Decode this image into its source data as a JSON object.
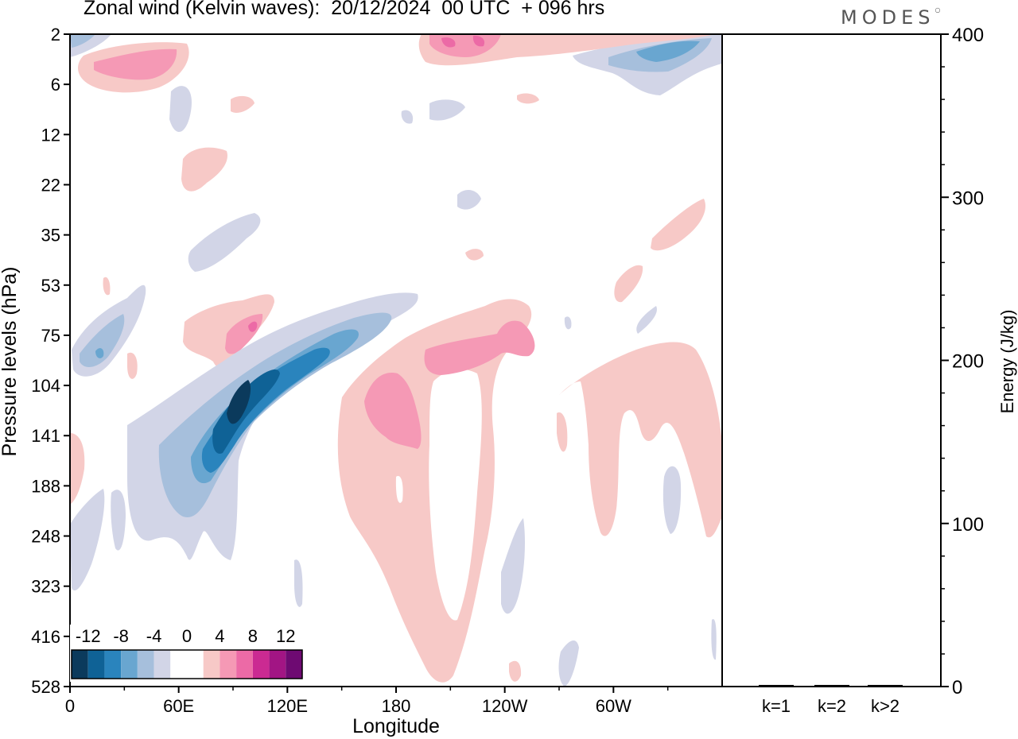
{
  "title": "Zonal wind (Kelvin waves):  20/12/2024  00 UTC  + 096 hrs",
  "brand": "MODES",
  "chart_data": [
    {
      "type": "heatmap",
      "xlabel": "Longitude",
      "ylabel": "Pressure levels (hPa)",
      "xticks": [
        "0",
        "60E",
        "120E",
        "180",
        "120W",
        "60W"
      ],
      "xtick_values": [
        0,
        60,
        120,
        180,
        240,
        300
      ],
      "xlim": [
        0,
        360
      ],
      "yticks": [
        "2",
        "6",
        "12",
        "22",
        "35",
        "53",
        "75",
        "104",
        "141",
        "188",
        "248",
        "323",
        "416",
        "528"
      ],
      "colorbar": {
        "labels": [
          "-12",
          "-8",
          "-4",
          "0",
          "4",
          "8",
          "12"
        ],
        "colors": [
          "#0b3a5c",
          "#0f6296",
          "#2a84bd",
          "#69a6d0",
          "#a6bfdc",
          "#d2d5e7",
          "#ffffff",
          "#ffffff",
          "#f7c9c7",
          "#f599b5",
          "#ec6aa6",
          "#cb2a92",
          "#a21584",
          "#6e0a72"
        ]
      },
      "features": [
        {
          "level": -14,
          "lon": 93,
          "p": 120,
          "note": "strongest easterly core"
        },
        {
          "level": -4,
          "lon": 95,
          "p": 140,
          "note": "negative wave band tilting from 188 hPa at 50E to 60 hPa at 175E"
        },
        {
          "level": 4,
          "lon": 200,
          "p": 200,
          "note": "broad westerly region 160E-200E, 80-528 hPa"
        },
        {
          "level": 6,
          "lon": 240,
          "p": 85,
          "note": "positive maximum near 120W"
        },
        {
          "level": -6,
          "lon": 330,
          "p": 4,
          "note": "upper-level easterlies near 30W"
        },
        {
          "level": 6,
          "lon": 20,
          "p": 5,
          "note": "upper-level westerlies near 20E"
        }
      ]
    },
    {
      "type": "bar",
      "categories": [
        "k=1",
        "k=2",
        "k>2"
      ],
      "values": [
        1,
        1,
        1
      ],
      "ylabel": "Energy (J/kg)",
      "ylim": [
        0,
        400
      ],
      "yticks": [
        "0",
        "100",
        "200",
        "300",
        "400"
      ]
    }
  ]
}
